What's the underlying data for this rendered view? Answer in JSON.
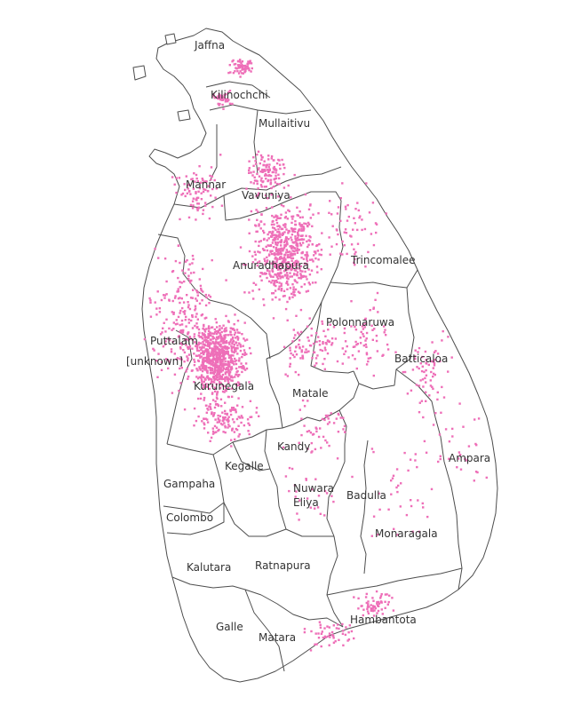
{
  "map": {
    "point_color": "#ee6fb8",
    "line_color": "#4d4d4d",
    "district_labels": {
      "jaffna": "Jaffna",
      "kilinochchi": "Kilinochchi",
      "mullaitivu": "Mullaitivu",
      "mannar": "Mannar",
      "vavuniya": "Vavuniya",
      "anuradhapura": "Anuradhapura",
      "trincomalee": "Trincomalee",
      "polonnaruwa": "Polonnaruwa",
      "puttalam": "Puttalam",
      "unknown": "[unknown]",
      "batticaloa": "Batticaloa",
      "kurunegala": "Kurunegala",
      "matale": "Matale",
      "kandy": "Kandy",
      "kegalle": "Kegalle",
      "ampara": "Ampara",
      "gampaha": "Gampaha",
      "nuwara_eliya_1": "Nuwara",
      "nuwara_eliya_2": "Eliya",
      "badulla": "Badulla",
      "colombo": "Colombo",
      "monaragala": "Monaragala",
      "kalutara": "Kalutara",
      "ratnapura": "Ratnapura",
      "hambantota": "Hambantota",
      "galle": "Galle",
      "matara": "Matara"
    }
  }
}
